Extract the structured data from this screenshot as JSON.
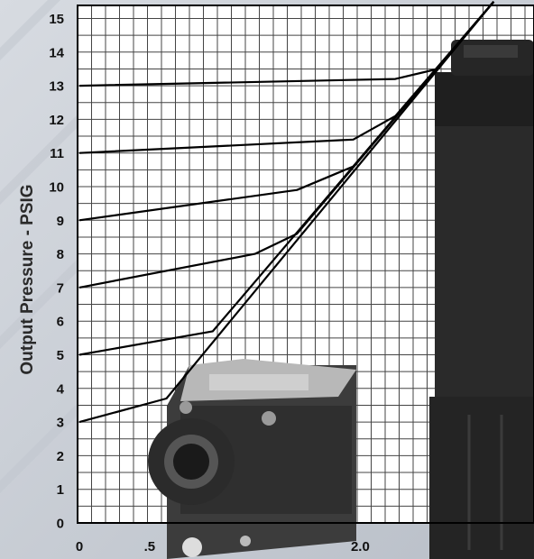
{
  "chart_data": {
    "type": "line",
    "title": "",
    "xlabel": "",
    "ylabel": "Output Pressure - PSIG",
    "xlim": [
      0,
      3.0
    ],
    "ylim": [
      0,
      15.5
    ],
    "grid": true,
    "x_tick_labels": [
      {
        "value": 0,
        "label": "0"
      },
      {
        "value": 0.5,
        "label": ".5"
      },
      {
        "value": 2.0,
        "label": "2.0"
      }
    ],
    "y_tick_labels": [
      {
        "value": 0,
        "label": "0"
      },
      {
        "value": 1,
        "label": "1"
      },
      {
        "value": 2,
        "label": "2"
      },
      {
        "value": 3,
        "label": "3"
      },
      {
        "value": 4,
        "label": "4"
      },
      {
        "value": 5,
        "label": "5"
      },
      {
        "value": 6,
        "label": "6"
      },
      {
        "value": 7,
        "label": "7"
      },
      {
        "value": 8,
        "label": "8"
      },
      {
        "value": 9,
        "label": "9"
      },
      {
        "value": 10,
        "label": "10"
      },
      {
        "value": 11,
        "label": "11"
      },
      {
        "value": 12,
        "label": "12"
      },
      {
        "value": 13,
        "label": "13"
      },
      {
        "value": 14,
        "label": "14"
      },
      {
        "value": 15,
        "label": "15"
      }
    ],
    "series": [
      {
        "points": [
          [
            0,
            3
          ],
          [
            0.62,
            3.7
          ],
          [
            2.95,
            15.5
          ]
        ]
      },
      {
        "points": [
          [
            0,
            5
          ],
          [
            0.95,
            5.7
          ],
          [
            2.95,
            15.5
          ]
        ]
      },
      {
        "points": [
          [
            0,
            7
          ],
          [
            1.25,
            8.0
          ],
          [
            1.55,
            8.6
          ],
          [
            2.95,
            15.5
          ]
        ]
      },
      {
        "points": [
          [
            0,
            9
          ],
          [
            1.55,
            9.9
          ],
          [
            1.95,
            10.6
          ],
          [
            2.95,
            15.5
          ]
        ]
      },
      {
        "points": [
          [
            0,
            11
          ],
          [
            1.95,
            11.4
          ],
          [
            2.25,
            12.1
          ],
          [
            2.95,
            15.5
          ]
        ]
      },
      {
        "points": [
          [
            0,
            13
          ],
          [
            2.25,
            13.2
          ],
          [
            2.55,
            13.5
          ],
          [
            2.95,
            15.5
          ]
        ]
      }
    ]
  }
}
